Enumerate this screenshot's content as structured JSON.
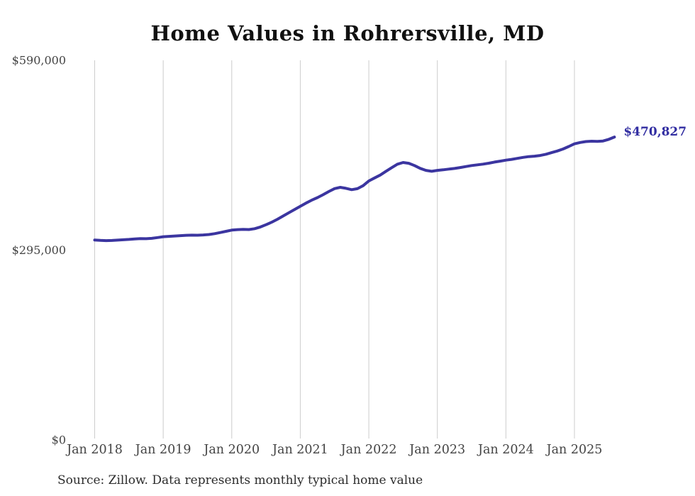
{
  "chart_data": {
    "type": "line",
    "title": "Home Values in Rohrersville, MD",
    "source_note": "Source: Zillow. Data represents monthly typical home value",
    "end_label": "$470,827",
    "latest_value": 470827,
    "unit": "USD",
    "legend": "none",
    "grid": "vertical-only",
    "ylim": [
      0,
      590000
    ],
    "y_ticks": [
      590000,
      295000,
      0
    ],
    "y_tick_labels": [
      "$590,000",
      "$295,000",
      "$0"
    ],
    "x_tick_labels": [
      "Jan 2018",
      "Jan 2019",
      "Jan 2020",
      "Jan 2021",
      "Jan 2022",
      "Jan 2023",
      "Jan 2024",
      "Jan 2025"
    ],
    "x": [
      "2018-01",
      "2018-02",
      "2018-03",
      "2018-04",
      "2018-05",
      "2018-06",
      "2018-07",
      "2018-08",
      "2018-09",
      "2018-10",
      "2018-11",
      "2018-12",
      "2019-01",
      "2019-02",
      "2019-03",
      "2019-04",
      "2019-05",
      "2019-06",
      "2019-07",
      "2019-08",
      "2019-09",
      "2019-10",
      "2019-11",
      "2019-12",
      "2020-01",
      "2020-02",
      "2020-03",
      "2020-04",
      "2020-05",
      "2020-06",
      "2020-07",
      "2020-08",
      "2020-09",
      "2020-10",
      "2020-11",
      "2020-12",
      "2021-01",
      "2021-02",
      "2021-03",
      "2021-04",
      "2021-05",
      "2021-06",
      "2021-07",
      "2021-08",
      "2021-09",
      "2021-10",
      "2021-11",
      "2021-12",
      "2022-01",
      "2022-02",
      "2022-03",
      "2022-04",
      "2022-05",
      "2022-06",
      "2022-07",
      "2022-08",
      "2022-09",
      "2022-10",
      "2022-11",
      "2022-12",
      "2023-01",
      "2023-02",
      "2023-03",
      "2023-04",
      "2023-05",
      "2023-06",
      "2023-07",
      "2023-08",
      "2023-09",
      "2023-10",
      "2023-11",
      "2023-12",
      "2024-01",
      "2024-02",
      "2024-03",
      "2024-04",
      "2024-05",
      "2024-06",
      "2024-07",
      "2024-08",
      "2024-09",
      "2024-10",
      "2024-11",
      "2024-12",
      "2025-01",
      "2025-02",
      "2025-03",
      "2025-04",
      "2025-05",
      "2025-06",
      "2025-07",
      "2025-08"
    ],
    "series": [
      {
        "name": "Typical home value",
        "color": "#3b35a0",
        "values": [
          310700,
          310100,
          309800,
          310000,
          310500,
          311100,
          311700,
          312400,
          313000,
          312800,
          313300,
          314500,
          315800,
          316400,
          316900,
          317500,
          318000,
          318300,
          318200,
          318600,
          319300,
          320600,
          322300,
          324200,
          326100,
          326900,
          327200,
          327000,
          328300,
          331000,
          334500,
          338500,
          343000,
          348100,
          353100,
          358200,
          363200,
          368100,
          372600,
          376600,
          381100,
          386100,
          390600,
          392600,
          391000,
          389000,
          390500,
          395100,
          402500,
          407200,
          411700,
          417500,
          423100,
          428600,
          431200,
          430000,
          426500,
          422000,
          419000,
          417500,
          419000,
          419800,
          420900,
          421900,
          423400,
          424900,
          426400,
          427600,
          428700,
          430100,
          431900,
          433300,
          434800,
          436100,
          437600,
          439100,
          440300,
          441000,
          442100,
          444000,
          446500,
          449100,
          452200,
          456000,
          460200,
          462300,
          463700,
          464300,
          464000,
          464600,
          467100,
          470827
        ]
      }
    ],
    "colors": {
      "line": "#3b35a0",
      "end_label": "#312da1",
      "grid": "#cccccc",
      "tick_text": "#444444",
      "title_text": "#111111",
      "source_text": "#2b2b2b"
    }
  }
}
